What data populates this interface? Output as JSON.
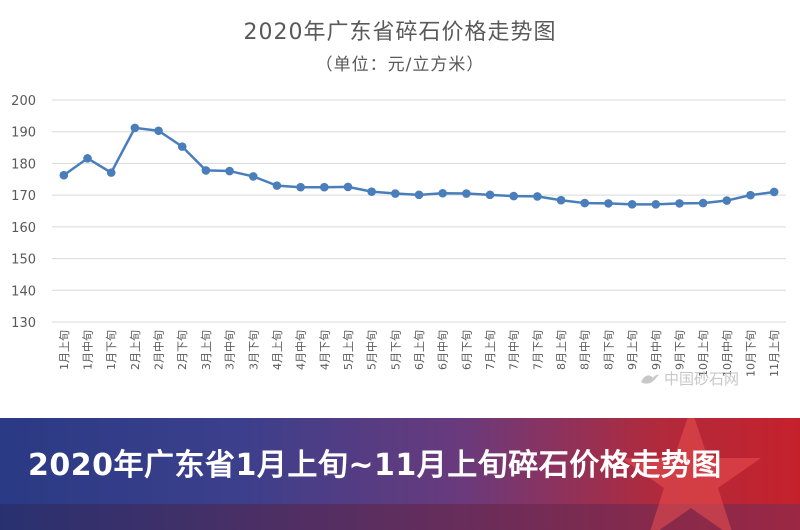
{
  "banner": {
    "caption": "2020年广东省1月上旬~11月上旬碎石价格走势图"
  },
  "watermark": {
    "text": "中国砂石网"
  },
  "colors": {
    "line": "#4a7ebb",
    "grid": "#d9d9d9",
    "text": "#595959"
  },
  "chart_data": {
    "type": "line",
    "title": "2020年广东省碎石价格走势图",
    "subtitle": "（单位：元/立方米）",
    "xlabel": "",
    "ylabel": "",
    "ylim": [
      130,
      200
    ],
    "yticks": [
      130,
      140,
      150,
      160,
      170,
      180,
      190,
      200
    ],
    "grid": true,
    "legend": "none",
    "categories": [
      "1月上旬",
      "1月中旬",
      "1月下旬",
      "2月上旬",
      "2月中旬",
      "2月下旬",
      "3月上旬",
      "3月中旬",
      "3月下旬",
      "4月上旬",
      "4月中旬",
      "4月下旬",
      "5月上旬",
      "5月中旬",
      "5月下旬",
      "6月上旬",
      "6月中旬",
      "6月下旬",
      "7月上旬",
      "7月中旬",
      "7月下旬",
      "8月上旬",
      "8月中旬",
      "8月下旬",
      "9月上旬",
      "9月中旬",
      "9月下旬",
      "10月上旬",
      "10月中旬",
      "10月下旬",
      "11月上旬"
    ],
    "series": [
      {
        "values": [
          176.3,
          181.6,
          177.1,
          191.2,
          190.3,
          185.3,
          177.8,
          177.6,
          175.9,
          173.0,
          172.5,
          172.5,
          172.6,
          171.1,
          170.5,
          170.1,
          170.6,
          170.5,
          170.1,
          169.7,
          169.6,
          168.4,
          167.5,
          167.4,
          167.1,
          167.1,
          167.4,
          167.5,
          168.3,
          170.0,
          171.0
        ]
      }
    ]
  }
}
